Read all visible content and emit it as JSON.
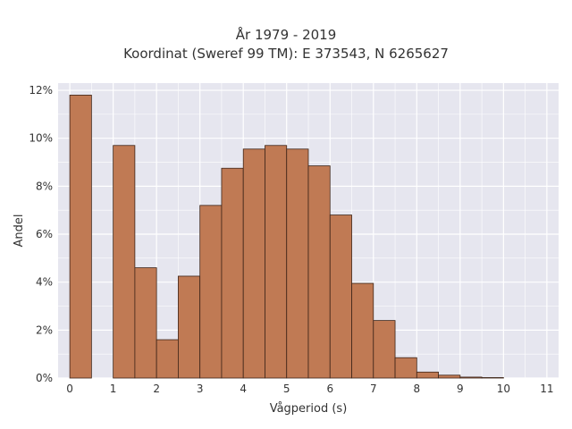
{
  "chart_data": {
    "type": "bar",
    "title": "År 1979 - 2019",
    "subtitle": "Koordinat (Sweref 99 TM): E 373543, N 6265627",
    "xlabel": "Vågperiod (s)",
    "ylabel": "Andel",
    "bin_width": 0.5,
    "bins": [
      {
        "x0": 0.0,
        "x1": 0.5,
        "value": 11.8
      },
      {
        "x0": 0.5,
        "x1": 1.0,
        "value": 0.0
      },
      {
        "x0": 1.0,
        "x1": 1.5,
        "value": 9.7
      },
      {
        "x0": 1.5,
        "x1": 2.0,
        "value": 4.6
      },
      {
        "x0": 2.0,
        "x1": 2.5,
        "value": 1.6
      },
      {
        "x0": 2.5,
        "x1": 3.0,
        "value": 4.25
      },
      {
        "x0": 3.0,
        "x1": 3.5,
        "value": 7.2
      },
      {
        "x0": 3.5,
        "x1": 4.0,
        "value": 8.75
      },
      {
        "x0": 4.0,
        "x1": 4.5,
        "value": 9.55
      },
      {
        "x0": 4.5,
        "x1": 5.0,
        "value": 9.7
      },
      {
        "x0": 5.0,
        "x1": 5.5,
        "value": 9.55
      },
      {
        "x0": 5.5,
        "x1": 6.0,
        "value": 8.85
      },
      {
        "x0": 6.0,
        "x1": 6.5,
        "value": 6.8
      },
      {
        "x0": 6.5,
        "x1": 7.0,
        "value": 3.95
      },
      {
        "x0": 7.0,
        "x1": 7.5,
        "value": 2.4
      },
      {
        "x0": 7.5,
        "x1": 8.0,
        "value": 0.85
      },
      {
        "x0": 8.0,
        "x1": 8.5,
        "value": 0.25
      },
      {
        "x0": 8.5,
        "x1": 9.0,
        "value": 0.12
      },
      {
        "x0": 9.0,
        "x1": 9.5,
        "value": 0.04
      },
      {
        "x0": 9.5,
        "x1": 10.0,
        "value": 0.02
      }
    ],
    "xlim": [
      -0.27,
      11.27
    ],
    "ylim": [
      0,
      12.3
    ],
    "xticks": [
      "0",
      "1",
      "2",
      "3",
      "4",
      "5",
      "6",
      "7",
      "8",
      "9",
      "10",
      "11"
    ],
    "yticks": [
      "0%",
      "2%",
      "4%",
      "6%",
      "8%",
      "10%",
      "12%"
    ],
    "grid": true,
    "colors": {
      "bar_fill": "#c07a54",
      "bar_edge": "#3d2418",
      "plot_bg": "#e6e6ef",
      "grid": "#ffffff"
    }
  }
}
